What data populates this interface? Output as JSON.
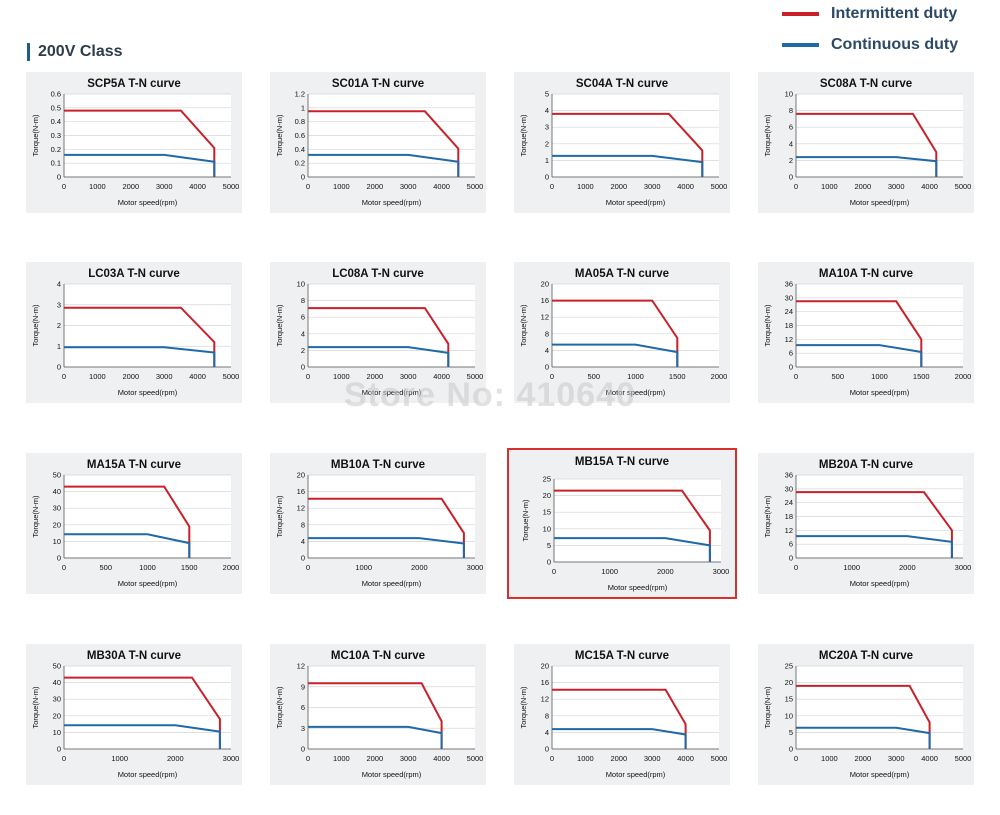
{
  "legend": {
    "intermittent_label": "Intermittent duty",
    "continuous_label": "Continuous duty",
    "intermittent_color": "#c9202a",
    "continuous_color": "#1e6aa8"
  },
  "section_title": "200V Class",
  "watermark": "Store No: 410640",
  "chart_data": [
    {
      "type": "line",
      "title": "SCP5A T-N curve",
      "xlabel": "Motor speed(rpm)",
      "ylabel": "Torque(N-m)",
      "xticks": [
        0,
        1000,
        2000,
        3000,
        4000,
        5000
      ],
      "yticks": [
        0,
        0.1,
        0.2,
        0.3,
        0.4,
        0.5,
        0.6
      ],
      "xlim": [
        0,
        5000
      ],
      "ylim": [
        0,
        0.6
      ],
      "series": [
        {
          "x": [
            0,
            3500,
            4500,
            4500
          ],
          "y": [
            0.48,
            0.48,
            0.21,
            0
          ]
        },
        {
          "x": [
            0,
            3000,
            4500,
            4500
          ],
          "y": [
            0.16,
            0.16,
            0.11,
            0
          ]
        }
      ]
    },
    {
      "type": "line",
      "title": "SC01A T-N curve",
      "xlabel": "Motor speed(rpm)",
      "ylabel": "Torque(N-m)",
      "xticks": [
        0,
        1000,
        2000,
        3000,
        4000,
        5000
      ],
      "yticks": [
        0,
        0.2,
        0.4,
        0.6,
        0.8,
        1,
        1.2
      ],
      "xlim": [
        0,
        5000
      ],
      "ylim": [
        0,
        1.2
      ],
      "series": [
        {
          "x": [
            0,
            3500,
            4500,
            4500
          ],
          "y": [
            0.95,
            0.95,
            0.41,
            0
          ]
        },
        {
          "x": [
            0,
            3000,
            4500,
            4500
          ],
          "y": [
            0.32,
            0.32,
            0.22,
            0
          ]
        }
      ]
    },
    {
      "type": "line",
      "title": "SC04A T-N curve",
      "xlabel": "Motor speed(rpm)",
      "ylabel": "Torque(N-m)",
      "xticks": [
        0,
        1000,
        2000,
        3000,
        4000,
        5000
      ],
      "yticks": [
        0,
        1,
        2,
        3,
        4,
        5
      ],
      "xlim": [
        0,
        5000
      ],
      "ylim": [
        0,
        5
      ],
      "series": [
        {
          "x": [
            0,
            3500,
            4500,
            4500
          ],
          "y": [
            3.8,
            3.8,
            1.6,
            0
          ]
        },
        {
          "x": [
            0,
            3000,
            4500,
            4500
          ],
          "y": [
            1.27,
            1.27,
            0.9,
            0
          ]
        }
      ]
    },
    {
      "type": "line",
      "title": "SC08A T-N curve",
      "xlabel": "Motor speed(rpm)",
      "ylabel": "Torque(N-m)",
      "xticks": [
        0,
        1000,
        2000,
        3000,
        4000,
        5000
      ],
      "yticks": [
        0,
        2,
        4,
        6,
        8,
        10
      ],
      "xlim": [
        0,
        5000
      ],
      "ylim": [
        0,
        10
      ],
      "series": [
        {
          "x": [
            0,
            3500,
            4200,
            4200
          ],
          "y": [
            7.6,
            7.6,
            3,
            0
          ]
        },
        {
          "x": [
            0,
            3000,
            4200,
            4200
          ],
          "y": [
            2.4,
            2.4,
            1.9,
            0
          ]
        }
      ]
    },
    {
      "type": "line",
      "title": "LC03A T-N curve",
      "xlabel": "Motor speed(rpm)",
      "ylabel": "Torque(N-m)",
      "xticks": [
        0,
        1000,
        2000,
        3000,
        4000,
        5000
      ],
      "yticks": [
        0,
        1,
        2,
        3,
        4
      ],
      "xlim": [
        0,
        5000
      ],
      "ylim": [
        0,
        4
      ],
      "series": [
        {
          "x": [
            0,
            3500,
            4500,
            4500
          ],
          "y": [
            2.86,
            2.86,
            1.2,
            0
          ]
        },
        {
          "x": [
            0,
            3000,
            4500,
            4500
          ],
          "y": [
            0.95,
            0.95,
            0.7,
            0
          ]
        }
      ]
    },
    {
      "type": "line",
      "title": "LC08A T-N curve",
      "xlabel": "Motor speed(rpm)",
      "ylabel": "Torque(N-m)",
      "xticks": [
        0,
        1000,
        2000,
        3000,
        4000,
        5000
      ],
      "yticks": [
        0,
        2,
        4,
        6,
        8,
        10
      ],
      "xlim": [
        0,
        5000
      ],
      "ylim": [
        0,
        10
      ],
      "series": [
        {
          "x": [
            0,
            3500,
            4200,
            4200
          ],
          "y": [
            7.1,
            7.1,
            2.8,
            0
          ]
        },
        {
          "x": [
            0,
            3000,
            4200,
            4200
          ],
          "y": [
            2.4,
            2.4,
            1.7,
            0
          ]
        }
      ]
    },
    {
      "type": "line",
      "title": "MA05A T-N curve",
      "xlabel": "Motor speed(rpm)",
      "ylabel": "Torque(N-m)",
      "xticks": [
        0,
        500,
        1000,
        1500,
        2000
      ],
      "yticks": [
        0,
        4,
        8,
        12,
        16,
        20
      ],
      "xlim": [
        0,
        2000
      ],
      "ylim": [
        0,
        20
      ],
      "series": [
        {
          "x": [
            0,
            1200,
            1500,
            1500
          ],
          "y": [
            16,
            16,
            7,
            0
          ]
        },
        {
          "x": [
            0,
            1000,
            1500,
            1500
          ],
          "y": [
            5.4,
            5.4,
            3.6,
            0
          ]
        }
      ]
    },
    {
      "type": "line",
      "title": "MA10A T-N curve",
      "xlabel": "Motor speed(rpm)",
      "ylabel": "Torque(N-m)",
      "xticks": [
        0,
        500,
        1000,
        1500,
        2000
      ],
      "yticks": [
        0,
        6,
        12,
        18,
        24,
        30,
        36
      ],
      "xlim": [
        0,
        2000
      ],
      "ylim": [
        0,
        36
      ],
      "series": [
        {
          "x": [
            0,
            1200,
            1500,
            1500
          ],
          "y": [
            28.5,
            28.5,
            12,
            0
          ]
        },
        {
          "x": [
            0,
            1000,
            1500,
            1500
          ],
          "y": [
            9.5,
            9.5,
            6.5,
            0
          ]
        }
      ]
    },
    {
      "type": "line",
      "title": "MA15A T-N curve",
      "xlabel": "Motor speed(rpm)",
      "ylabel": "Torque(N-m)",
      "xticks": [
        0,
        500,
        1000,
        1500,
        2000
      ],
      "yticks": [
        0,
        10,
        20,
        30,
        40,
        50
      ],
      "xlim": [
        0,
        2000
      ],
      "ylim": [
        0,
        50
      ],
      "series": [
        {
          "x": [
            0,
            1200,
            1500,
            1500
          ],
          "y": [
            43,
            43,
            19,
            0
          ]
        },
        {
          "x": [
            0,
            1000,
            1500,
            1500
          ],
          "y": [
            14.3,
            14.3,
            9,
            0
          ]
        }
      ]
    },
    {
      "type": "line",
      "title": "MB10A T-N curve",
      "xlabel": "Motor speed(rpm)",
      "ylabel": "Torque(N-m)",
      "xticks": [
        0,
        1000,
        2000,
        3000
      ],
      "yticks": [
        0,
        4,
        8,
        12,
        16,
        20
      ],
      "xlim": [
        0,
        3000
      ],
      "ylim": [
        0,
        20
      ],
      "series": [
        {
          "x": [
            0,
            2400,
            2800,
            2800
          ],
          "y": [
            14.3,
            14.3,
            6,
            0
          ]
        },
        {
          "x": [
            0,
            2000,
            2800,
            2800
          ],
          "y": [
            4.8,
            4.8,
            3.5,
            0
          ]
        }
      ]
    },
    {
      "type": "line",
      "title": "MB15A T-N curve",
      "xlabel": "Motor speed(rpm)",
      "ylabel": "Torque(N-m)",
      "xticks": [
        0,
        1000,
        2000,
        3000
      ],
      "yticks": [
        0,
        5,
        10,
        15,
        20,
        25
      ],
      "xlim": [
        0,
        3000
      ],
      "ylim": [
        0,
        25
      ],
      "series": [
        {
          "x": [
            0,
            2300,
            2800,
            2800
          ],
          "y": [
            21.5,
            21.5,
            9.5,
            0
          ]
        },
        {
          "x": [
            0,
            2000,
            2800,
            2800
          ],
          "y": [
            7.2,
            7.2,
            5,
            0
          ]
        }
      ]
    },
    {
      "type": "line",
      "title": "MB20A T-N curve",
      "xlabel": "Motor speed(rpm)",
      "ylabel": "Torque(N-m)",
      "xticks": [
        0,
        1000,
        2000,
        3000
      ],
      "yticks": [
        0,
        6,
        12,
        18,
        24,
        30,
        36
      ],
      "xlim": [
        0,
        3000
      ],
      "ylim": [
        0,
        36
      ],
      "series": [
        {
          "x": [
            0,
            2300,
            2800,
            2800
          ],
          "y": [
            28.6,
            28.6,
            12,
            0
          ]
        },
        {
          "x": [
            0,
            2000,
            2800,
            2800
          ],
          "y": [
            9.5,
            9.5,
            7,
            0
          ]
        }
      ]
    },
    {
      "type": "line",
      "title": "MB30A T-N curve",
      "xlabel": "Motor speed(rpm)",
      "ylabel": "Torque(N-m)",
      "xticks": [
        0,
        1000,
        2000,
        3000
      ],
      "yticks": [
        0,
        10,
        20,
        30,
        40,
        50
      ],
      "xlim": [
        0,
        3000
      ],
      "ylim": [
        0,
        50
      ],
      "series": [
        {
          "x": [
            0,
            2300,
            2800,
            2800
          ],
          "y": [
            43,
            43,
            18,
            0
          ]
        },
        {
          "x": [
            0,
            2000,
            2800,
            2800
          ],
          "y": [
            14.3,
            14.3,
            10.5,
            0
          ]
        }
      ]
    },
    {
      "type": "line",
      "title": "MC10A T-N curve",
      "xlabel": "Motor speed(rpm)",
      "ylabel": "Torque(N-m)",
      "xticks": [
        0,
        1000,
        2000,
        3000,
        4000,
        5000
      ],
      "yticks": [
        0,
        3,
        6,
        9,
        12
      ],
      "xlim": [
        0,
        5000
      ],
      "ylim": [
        0,
        12
      ],
      "series": [
        {
          "x": [
            0,
            3400,
            4000,
            4000
          ],
          "y": [
            9.5,
            9.5,
            4,
            0
          ]
        },
        {
          "x": [
            0,
            3000,
            4000,
            4000
          ],
          "y": [
            3.2,
            3.2,
            2.3,
            0
          ]
        }
      ]
    },
    {
      "type": "line",
      "title": "MC15A T-N curve",
      "xlabel": "Motor speed(rpm)",
      "ylabel": "Torque(N-m)",
      "xticks": [
        0,
        1000,
        2000,
        3000,
        4000,
        5000
      ],
      "yticks": [
        0,
        4,
        8,
        12,
        16,
        20
      ],
      "xlim": [
        0,
        5000
      ],
      "ylim": [
        0,
        20
      ],
      "series": [
        {
          "x": [
            0,
            3400,
            4000,
            4000
          ],
          "y": [
            14.3,
            14.3,
            6,
            0
          ]
        },
        {
          "x": [
            0,
            3000,
            4000,
            4000
          ],
          "y": [
            4.8,
            4.8,
            3.5,
            0
          ]
        }
      ]
    },
    {
      "type": "line",
      "title": "MC20A T-N curve",
      "xlabel": "Motor speed(rpm)",
      "ylabel": "Torque(N-m)",
      "xticks": [
        0,
        1000,
        2000,
        3000,
        4000,
        5000
      ],
      "yticks": [
        0,
        5,
        10,
        15,
        20,
        25
      ],
      "xlim": [
        0,
        5000
      ],
      "ylim": [
        0,
        25
      ],
      "series": [
        {
          "x": [
            0,
            3400,
            4000,
            4000
          ],
          "y": [
            19,
            19,
            8,
            0
          ]
        },
        {
          "x": [
            0,
            3000,
            4000,
            4000
          ],
          "y": [
            6.4,
            6.4,
            4.8,
            0
          ]
        }
      ]
    }
  ]
}
